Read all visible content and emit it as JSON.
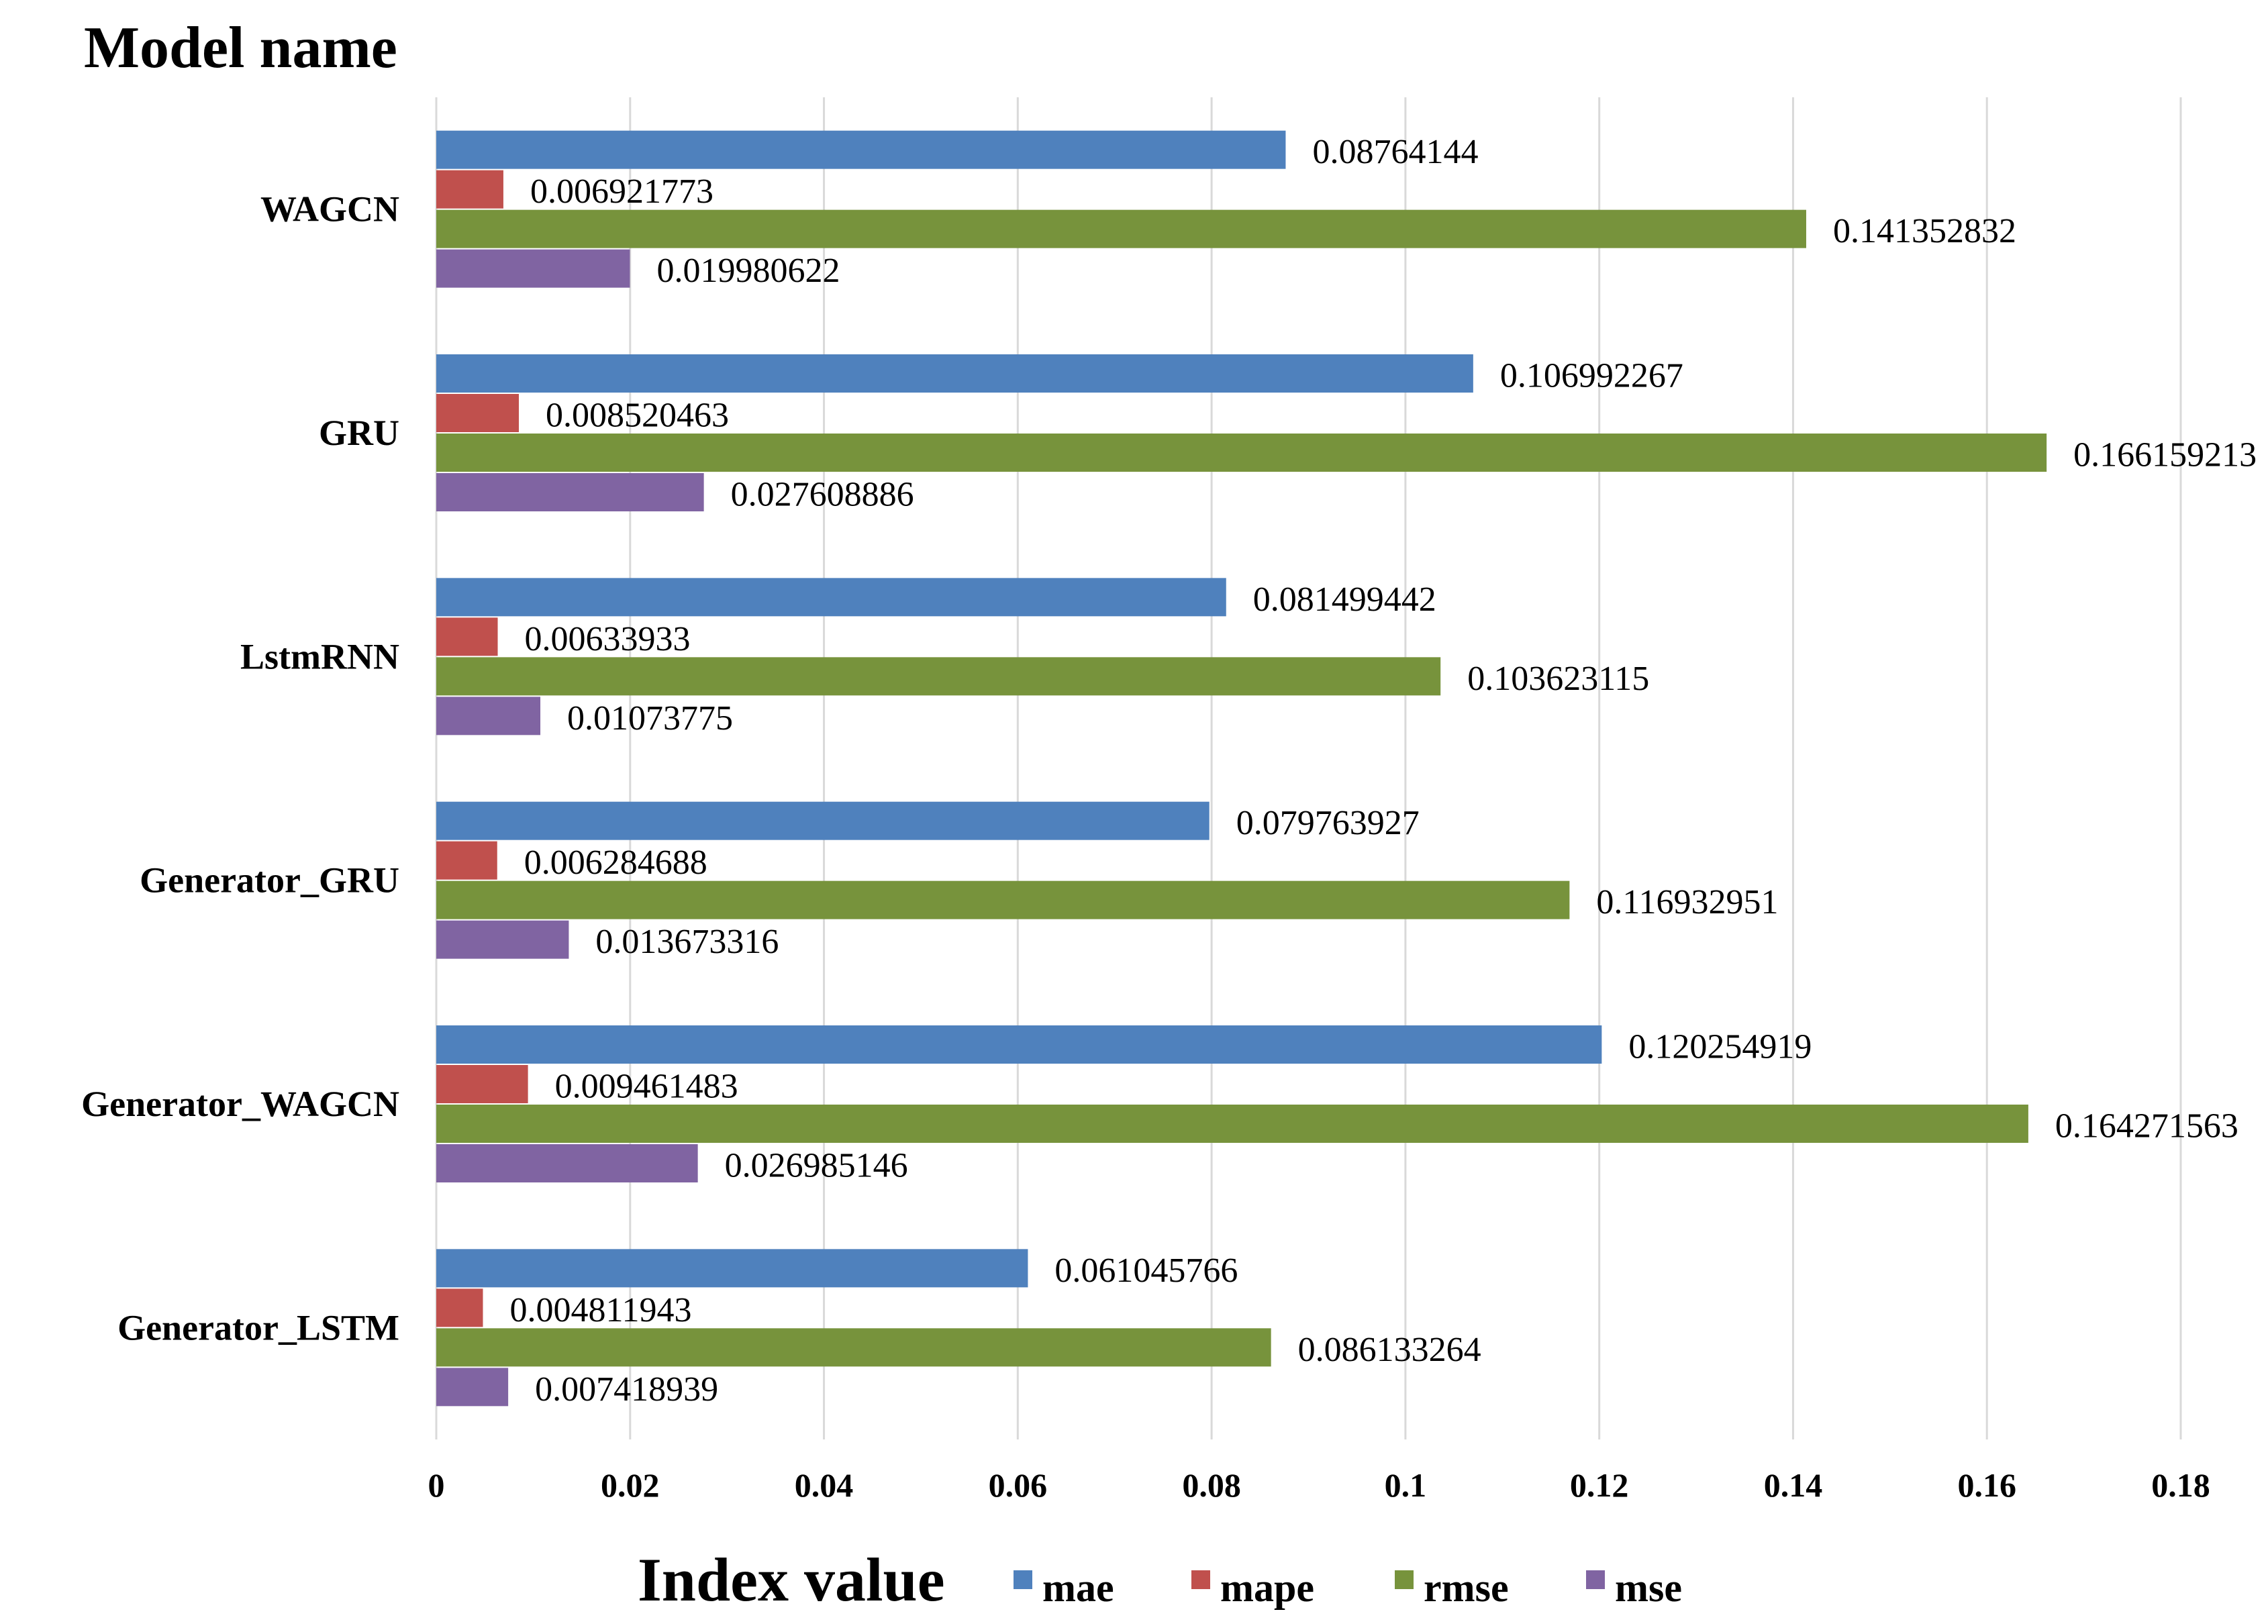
{
  "chart_data": {
    "type": "bar",
    "orientation": "horizontal",
    "ylabel": "Model name",
    "xlabel": "Index value",
    "xlim": [
      0,
      0.18
    ],
    "x_ticks": [
      0,
      0.02,
      0.04,
      0.06,
      0.08,
      0.1,
      0.12,
      0.14,
      0.16,
      0.18
    ],
    "x_tick_labels": [
      "0",
      "0.02",
      "0.04",
      "0.06",
      "0.08",
      "0.1",
      "0.12",
      "0.14",
      "0.16",
      "0.18"
    ],
    "grid": "vertical",
    "legend_position": "bottom",
    "categories": [
      "WAGCN",
      "GRU",
      "LstmRNN",
      "Generator_GRU",
      "Generator_WAGCN",
      "Generator_LSTM"
    ],
    "series": [
      {
        "name": "mae",
        "color": "#4f81bd",
        "values": [
          0.08764144,
          0.106992267,
          0.081499442,
          0.079763927,
          0.120254919,
          0.061045766
        ],
        "labels": [
          "0.08764144",
          "0.106992267",
          "0.081499442",
          "0.079763927",
          "0.120254919",
          "0.061045766"
        ]
      },
      {
        "name": "mape",
        "color": "#c0504d",
        "values": [
          0.006921773,
          0.008520463,
          0.00633933,
          0.006284688,
          0.009461483,
          0.004811943
        ],
        "labels": [
          "0.006921773",
          "0.008520463",
          "0.00633933",
          "0.006284688",
          "0.009461483",
          "0.004811943"
        ]
      },
      {
        "name": "rmse",
        "color": "#77933c",
        "values": [
          0.141352832,
          0.166159213,
          0.103623115,
          0.116932951,
          0.164271563,
          0.086133264
        ],
        "labels": [
          "0.141352832",
          "0.166159213",
          "0.103623115",
          "0.116932951",
          "0.164271563",
          "0.086133264"
        ]
      },
      {
        "name": "mse",
        "color": "#8064a2",
        "values": [
          0.019980622,
          0.027608886,
          0.01073775,
          0.013673316,
          0.026985146,
          0.007418939
        ],
        "labels": [
          "0.019980622",
          "0.027608886",
          "0.01073775",
          "0.013673316",
          "0.026985146",
          "0.007418939"
        ]
      }
    ]
  }
}
